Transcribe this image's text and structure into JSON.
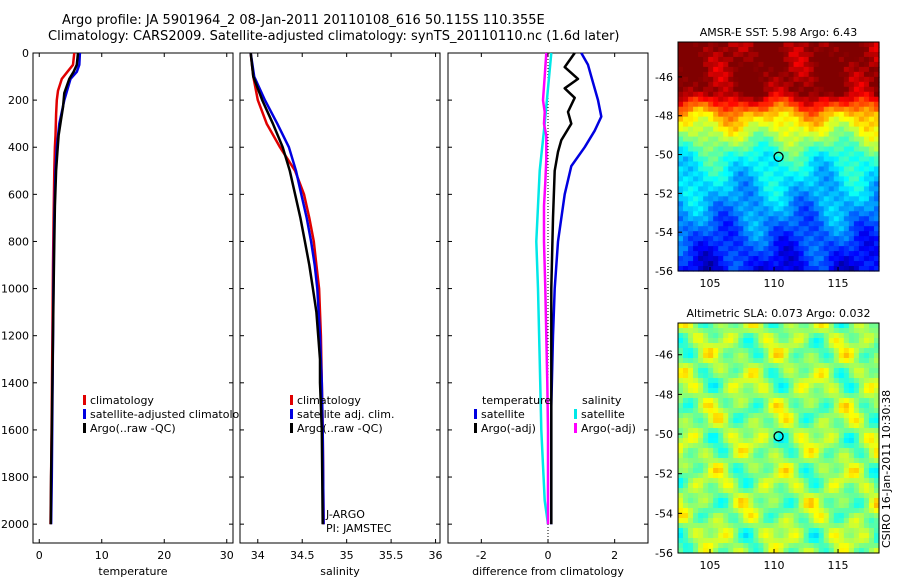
{
  "titles": {
    "line1": "Argo profile: JA 5901964_2 08-Jan-2011 20110108_616 50.115S 110.355E",
    "line2": "Climatology: CARS2009. Satellite-adjusted climatology: synTS_20110110.nc (1.6d later)"
  },
  "credit": "CSIRO 16-Jan-2011 10:30:38",
  "colors": {
    "red": "#e00000",
    "blue": "#0000e0",
    "black": "#000000",
    "cyan": "#00e8e8",
    "magenta": "#ff00ff"
  },
  "chart_data": [
    {
      "type": "line",
      "id": "temperature",
      "xlabel": "temperature",
      "ylabel": "",
      "xlim": [
        -1,
        31
      ],
      "ylim": [
        2080,
        0
      ],
      "xticks": [
        0,
        10,
        20,
        30
      ],
      "xtick_labels": [
        "0",
        "10",
        "20",
        "30"
      ],
      "yticks": [
        0,
        200,
        400,
        600,
        800,
        1000,
        1200,
        1400,
        1600,
        1800,
        2000
      ],
      "ytick_labels": [
        "0",
        "200",
        "400",
        "600",
        "800",
        "1000",
        "1200",
        "1400",
        "1600",
        "1800",
        "2000"
      ],
      "legend": {
        "position": "center-right",
        "entries": [
          {
            "label": "climatology",
            "color": "#e00000"
          },
          {
            "label": "satellite-adjusted climatology",
            "color": "#0000e0"
          },
          {
            "label": "Argo(..raw -QC)",
            "color": "#000000"
          }
        ]
      },
      "series": [
        {
          "name": "climatology",
          "color": "#e00000",
          "points": [
            [
              5.6,
              0
            ],
            [
              5.4,
              50
            ],
            [
              4.5,
              80
            ],
            [
              3.6,
              110
            ],
            [
              3.0,
              160
            ],
            [
              2.8,
              200
            ],
            [
              2.7,
              260
            ],
            [
              2.6,
              350
            ],
            [
              2.5,
              400
            ],
            [
              2.4,
              500
            ],
            [
              2.3,
              700
            ],
            [
              2.2,
              900
            ],
            [
              2.1,
              1200
            ],
            [
              2.0,
              1500
            ],
            [
              1.9,
              1800
            ],
            [
              1.8,
              2000
            ]
          ]
        },
        {
          "name": "satellite-adjusted climatology",
          "color": "#0000e0",
          "points": [
            [
              6.5,
              0
            ],
            [
              6.4,
              50
            ],
            [
              6.0,
              80
            ],
            [
              5.0,
              110
            ],
            [
              4.0,
              200
            ],
            [
              3.2,
              300
            ],
            [
              2.8,
              400
            ],
            [
              2.6,
              500
            ],
            [
              2.4,
              700
            ],
            [
              2.3,
              900
            ],
            [
              2.2,
              1200
            ],
            [
              2.1,
              1500
            ],
            [
              2.0,
              1800
            ],
            [
              1.9,
              2000
            ]
          ]
        },
        {
          "name": "Argo(..raw -QC)",
          "color": "#000000",
          "points": [
            [
              6.2,
              0
            ],
            [
              6.0,
              50
            ],
            [
              5.5,
              80
            ],
            [
              4.8,
              110
            ],
            [
              4.0,
              170
            ],
            [
              3.8,
              230
            ],
            [
              3.5,
              280
            ],
            [
              3.1,
              350
            ],
            [
              2.9,
              420
            ],
            [
              2.7,
              500
            ],
            [
              2.5,
              650
            ],
            [
              2.4,
              800
            ],
            [
              2.3,
              1000
            ],
            [
              2.2,
              1200
            ],
            [
              2.1,
              1400
            ],
            [
              2.0,
              1600
            ],
            [
              1.9,
              1800
            ],
            [
              1.85,
              2000
            ]
          ]
        }
      ]
    },
    {
      "type": "line",
      "id": "salinity",
      "xlabel": "salinity",
      "ylabel": "",
      "xlim": [
        33.8,
        36.05
      ],
      "ylim": [
        2080,
        0
      ],
      "xticks": [
        34,
        34.5,
        35,
        35.5,
        36
      ],
      "xtick_labels": [
        "34",
        "34.5",
        "35",
        "35.5",
        "36"
      ],
      "legend": {
        "position": "center-right",
        "entries": [
          {
            "label": "climatology",
            "color": "#e00000"
          },
          {
            "label": "satellite adj. clim.",
            "color": "#0000e0"
          },
          {
            "label": "Argo(..raw -QC)",
            "color": "#000000"
          }
        ]
      },
      "annotations": [
        "J-ARGO",
        "PI: JAMSTEC"
      ],
      "series": [
        {
          "name": "climatology",
          "color": "#e00000",
          "points": [
            [
              33.92,
              0
            ],
            [
              33.95,
              100
            ],
            [
              34.0,
              200
            ],
            [
              34.1,
              300
            ],
            [
              34.25,
              400
            ],
            [
              34.42,
              500
            ],
            [
              34.52,
              600
            ],
            [
              34.58,
              700
            ],
            [
              34.63,
              800
            ],
            [
              34.66,
              900
            ],
            [
              34.69,
              1000
            ],
            [
              34.71,
              1200
            ],
            [
              34.72,
              1400
            ],
            [
              34.73,
              1600
            ],
            [
              34.74,
              2000
            ]
          ]
        },
        {
          "name": "satellite adj. clim.",
          "color": "#0000e0",
          "points": [
            [
              33.92,
              0
            ],
            [
              33.96,
              100
            ],
            [
              34.08,
              200
            ],
            [
              34.22,
              300
            ],
            [
              34.35,
              400
            ],
            [
              34.43,
              500
            ],
            [
              34.49,
              600
            ],
            [
              34.55,
              700
            ],
            [
              34.6,
              800
            ],
            [
              34.64,
              900
            ],
            [
              34.67,
              1000
            ],
            [
              34.7,
              1200
            ],
            [
              34.72,
              1400
            ],
            [
              34.73,
              1600
            ],
            [
              34.74,
              2000
            ]
          ]
        },
        {
          "name": "Argo(..raw -QC)",
          "color": "#000000",
          "points": [
            [
              33.92,
              0
            ],
            [
              33.95,
              100
            ],
            [
              34.05,
              200
            ],
            [
              34.17,
              300
            ],
            [
              34.28,
              400
            ],
            [
              34.36,
              500
            ],
            [
              34.42,
              600
            ],
            [
              34.48,
              700
            ],
            [
              34.53,
              800
            ],
            [
              34.58,
              900
            ],
            [
              34.62,
              1000
            ],
            [
              34.66,
              1100
            ],
            [
              34.68,
              1200
            ],
            [
              34.7,
              1300
            ],
            [
              34.7,
              1400
            ],
            [
              34.72,
              1600
            ],
            [
              34.73,
              2000
            ]
          ]
        }
      ]
    },
    {
      "type": "line",
      "id": "difference",
      "xlabel": "difference from climatology",
      "ylabel": "",
      "xlim": [
        -3,
        3
      ],
      "ylim": [
        2080,
        0
      ],
      "xticks": [
        -2,
        0,
        2
      ],
      "xtick_labels": [
        "-2",
        "0",
        "2"
      ],
      "legend": {
        "position": "bottom-center",
        "columns": [
          {
            "heading": "temperature",
            "entries": [
              {
                "label": "satellite",
                "color": "#0000e0"
              },
              {
                "label": "Argo(-adj)",
                "color": "#000000"
              }
            ]
          },
          {
            "heading": "salinity",
            "entries": [
              {
                "label": "satellite",
                "color": "#00e8e8"
              },
              {
                "label": "Argo(-adj)",
                "color": "#ff00ff"
              }
            ]
          }
        ]
      },
      "series": [
        {
          "name": "temperature satellite",
          "color": "#0000e0",
          "points": [
            [
              1.0,
              0
            ],
            [
              1.2,
              50
            ],
            [
              1.3,
              100
            ],
            [
              1.5,
              200
            ],
            [
              1.6,
              270
            ],
            [
              1.4,
              330
            ],
            [
              1.1,
              400
            ],
            [
              0.7,
              480
            ],
            [
              0.5,
              600
            ],
            [
              0.3,
              800
            ],
            [
              0.2,
              1000
            ],
            [
              0.15,
              1200
            ],
            [
              0.1,
              1500
            ],
            [
              0.1,
              2000
            ]
          ]
        },
        {
          "name": "temperature Argo(-adj)",
          "color": "#000000",
          "points": [
            [
              0.8,
              0
            ],
            [
              0.5,
              60
            ],
            [
              0.9,
              110
            ],
            [
              0.5,
              150
            ],
            [
              0.8,
              190
            ],
            [
              0.6,
              250
            ],
            [
              0.7,
              300
            ],
            [
              0.4,
              370
            ],
            [
              0.3,
              420
            ],
            [
              0.2,
              500
            ],
            [
              0.15,
              700
            ],
            [
              0.1,
              1000
            ],
            [
              0.1,
              1500
            ],
            [
              0.1,
              2000
            ]
          ]
        },
        {
          "name": "salinity satellite",
          "color": "#00e8e8",
          "points": [
            [
              0.1,
              0
            ],
            [
              0.0,
              150
            ],
            [
              -0.1,
              300
            ],
            [
              -0.25,
              500
            ],
            [
              -0.3,
              650
            ],
            [
              -0.35,
              800
            ],
            [
              -0.3,
              1000
            ],
            [
              -0.25,
              1300
            ],
            [
              -0.2,
              1600
            ],
            [
              -0.1,
              1900
            ],
            [
              0.0,
              2000
            ]
          ]
        },
        {
          "name": "salinity Argo(-adj)",
          "color": "#ff00ff",
          "points": [
            [
              -0.05,
              0
            ],
            [
              -0.1,
              100
            ],
            [
              -0.15,
              200
            ],
            [
              -0.1,
              250
            ],
            [
              -0.12,
              300
            ],
            [
              -0.05,
              350
            ],
            [
              -0.05,
              450
            ],
            [
              -0.08,
              550
            ],
            [
              -0.12,
              650
            ],
            [
              -0.12,
              800
            ],
            [
              -0.08,
              1000
            ],
            [
              -0.05,
              1200
            ],
            [
              -0.02,
              1400
            ],
            [
              0.0,
              1600
            ],
            [
              0.0,
              2000
            ]
          ]
        }
      ]
    },
    {
      "type": "heatmap",
      "id": "sst_map",
      "title": "AMSR-E SST: 5.98 Argo: 6.43",
      "xlim": [
        102.5,
        118.2
      ],
      "ylim": [
        -56,
        -44.2
      ],
      "xticks": [
        105,
        110,
        115
      ],
      "xtick_labels": [
        "105",
        "110",
        "115"
      ],
      "yticks": [
        -46,
        -48,
        -50,
        -52,
        -54,
        -56
      ],
      "ytick_labels": [
        "-46",
        "-48",
        "-50",
        "-52",
        "-54",
        "-56"
      ],
      "marker": {
        "lon": 110.355,
        "lat": -50.115
      }
    },
    {
      "type": "heatmap",
      "id": "sla_map",
      "title": "Altimetric SLA: 0.073 Argo: 0.032",
      "xlim": [
        102.5,
        118.2
      ],
      "ylim": [
        -56,
        -44.4
      ],
      "xticks": [
        105,
        110,
        115
      ],
      "xtick_labels": [
        "105",
        "110",
        "115"
      ],
      "yticks": [
        -46,
        -48,
        -50,
        -52,
        -54,
        -56
      ],
      "ytick_labels": [
        "-46",
        "-48",
        "-50",
        "-52",
        "-54",
        "-56"
      ],
      "marker": {
        "lon": 110.355,
        "lat": -50.115
      }
    }
  ]
}
